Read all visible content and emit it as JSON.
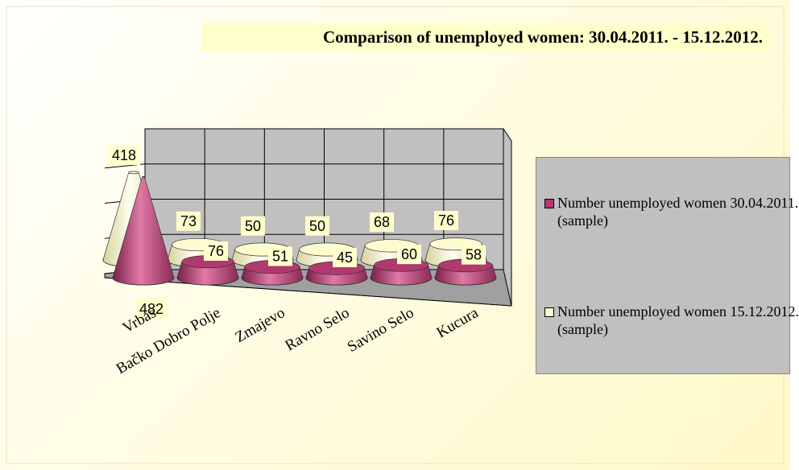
{
  "chart_data": {
    "type": "cone3d",
    "title": "Comparison of unemployed women: 30.04.2011. - 15.12.2012.",
    "categories": [
      "Vrbas",
      "Bačko Dobro Polje",
      "Zmajevo",
      "Ravno Selo",
      "Savino Selo",
      "Kucura"
    ],
    "series": [
      {
        "name": "Number unemployed women 30.04.2011. (sample)",
        "color": "#b03a6e",
        "values": [
          482,
          76,
          51,
          45,
          60,
          58
        ]
      },
      {
        "name": "Number unemployed women 15.12.2012. (sample)",
        "color": "#fffbd0",
        "values": [
          418,
          73,
          50,
          50,
          68,
          76
        ]
      }
    ],
    "ylim": [
      0,
      500
    ],
    "grid": true,
    "legend": "right"
  }
}
